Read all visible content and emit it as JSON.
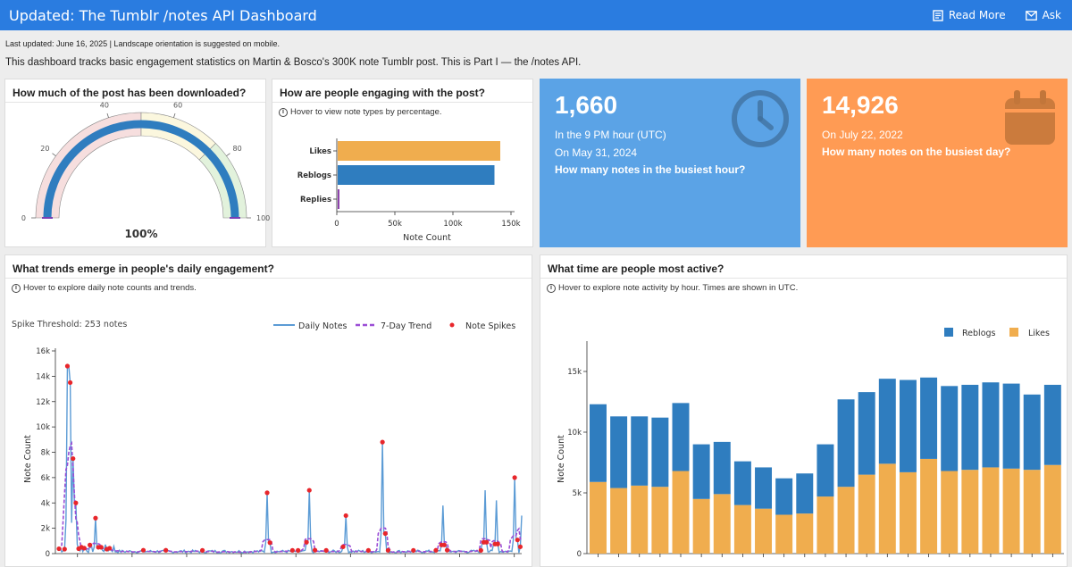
{
  "header": {
    "title": "Updated: The Tumblr /notes API Dashboard",
    "read_more": "Read More",
    "ask": "Ask"
  },
  "meta_line": "Last updated: June 16, 2025 | Landscape orientation is suggested on mobile.",
  "description": "This dashboard tracks basic engagement statistics on Martin & Bosco's 300K note Tumblr post. This is Part I — the /notes API.",
  "download_card": {
    "title": "How much of the post has been downloaded?",
    "percent_label": "100%",
    "value": 100,
    "ticks": [
      "0",
      "20",
      "40",
      "60",
      "80",
      "100"
    ]
  },
  "engagement_card": {
    "title": "How are people engaging with the post?",
    "hint": "Hover to view note types by percentage.",
    "x_axis_label": "Note Count",
    "x_ticks": [
      "0",
      "50k",
      "100k",
      "150k"
    ],
    "bars": [
      {
        "label": "Likes",
        "value": 140000,
        "color": "#f0ad4e"
      },
      {
        "label": "Reblogs",
        "value": 135000,
        "color": "#2f7dbf"
      },
      {
        "label": "Replies",
        "value": 1500,
        "color": "#8e44ad"
      }
    ]
  },
  "busiest_hour": {
    "value": "1,660",
    "line1": "In the 9 PM hour (UTC)",
    "line2": "On May 31, 2024",
    "question": "How many notes in the busiest hour?",
    "color": "#5ba3e6",
    "icon": "clock-icon"
  },
  "busiest_day": {
    "value": "14,926",
    "line1": "On July 22, 2022",
    "question": "How many notes on the busiest day?",
    "color": "#ff9b54",
    "icon": "calendar-icon"
  },
  "daily_card": {
    "title": "What trends emerge in people's daily engagement?",
    "hint": "Hover to explore daily note counts and trends.",
    "spike_threshold": "Spike Threshold: 253 notes",
    "legend": [
      "Daily Notes",
      "7-Day Trend",
      "Note Spikes"
    ],
    "y_axis_label": "Note Count",
    "y_ticks": [
      "0",
      "2k",
      "4k",
      "6k",
      "8k",
      "10k",
      "12k",
      "14k",
      "16k"
    ],
    "spikes": [
      [
        0.02,
        14800
      ],
      [
        0.025,
        13500
      ],
      [
        0.03,
        7500
      ],
      [
        0.035,
        4000
      ],
      [
        0.08,
        2800
      ],
      [
        0.45,
        4800
      ],
      [
        0.54,
        5000
      ],
      [
        0.62,
        3000
      ],
      [
        0.7,
        8800
      ],
      [
        0.83,
        3800
      ],
      [
        0.92,
        5000
      ],
      [
        0.945,
        4200
      ],
      [
        0.985,
        6000
      ],
      [
        1.0,
        3000
      ]
    ]
  },
  "hourly_card": {
    "title": "What time are people most active?",
    "hint": "Hover to explore note activity by hour. Times are shown in UTC.",
    "legend": [
      "Reblogs",
      "Likes"
    ],
    "y_axis_label": "Note Count",
    "y_ticks": [
      "0",
      "5k",
      "10k",
      "15k"
    ],
    "reblogs": [
      6400,
      5900,
      5700,
      5700,
      5600,
      4500,
      4300,
      3600,
      3400,
      3000,
      3300,
      4300,
      7200,
      6800,
      7000,
      7600,
      6700,
      7000,
      7000,
      7000,
      7000,
      6200,
      6600
    ],
    "likes": [
      5900,
      5400,
      5600,
      5500,
      6800,
      4500,
      4900,
      4000,
      3700,
      3200,
      3300,
      4700,
      5500,
      6500,
      7400,
      6700,
      7800,
      6800,
      6900,
      7100,
      7000,
      6900,
      7300
    ],
    "colors": {
      "reblogs": "#2f7dbf",
      "likes": "#f0ad4e"
    }
  }
}
